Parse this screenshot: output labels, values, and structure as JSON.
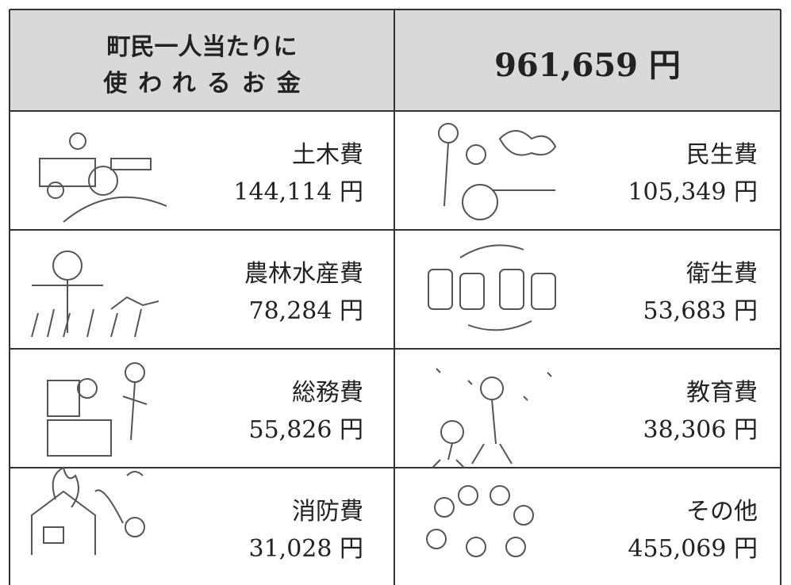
{
  "header": {
    "title_lines": [
      "町民一人当たりに",
      "使われるお金"
    ],
    "total": "961,659 円"
  },
  "items": [
    {
      "name": "土木費",
      "amount": "144,114 円"
    },
    {
      "name": "民生費",
      "amount": "105,349 円"
    },
    {
      "name": "農林水産費",
      "amount": "78,284 円"
    },
    {
      "name": "衛生費",
      "amount": "53,683 円"
    },
    {
      "name": "総務費",
      "amount": "55,826 円"
    },
    {
      "name": "教育費",
      "amount": "38,306 円"
    },
    {
      "name": "消防費",
      "amount": "31,028 円"
    },
    {
      "name": "その他",
      "amount": "455,069 円"
    }
  ]
}
